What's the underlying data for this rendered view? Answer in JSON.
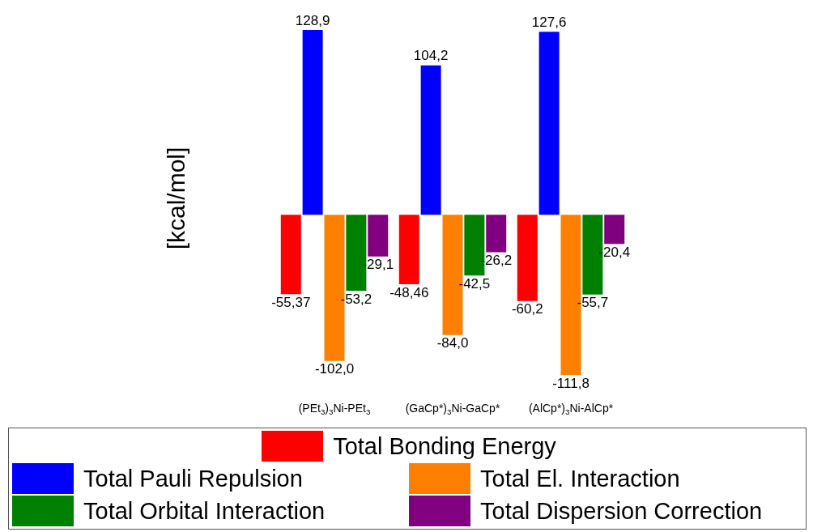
{
  "chart_data": {
    "type": "bar",
    "ylabel": "[kcal/mol]",
    "categories": [
      "(PEt$_{3}$)$_{3}$Ni-PEt$_{3}$",
      "(GaCp*)$_{3}$Ni-GaCp*",
      "(AlCp*)$_{3}$Ni-AlCp*"
    ],
    "series": [
      {
        "name": "Total Bonding Energy",
        "color": "#ff0000",
        "values": [
          -55.37,
          -48.46,
          -60.2
        ],
        "value_labels": [
          "-55,37",
          "-48,46",
          "-60,2"
        ]
      },
      {
        "name": "Total Pauli Repulsion",
        "color": "#0000ff",
        "values": [
          128.9,
          104.2,
          127.6
        ],
        "value_labels": [
          "128,9",
          "104,2",
          "127,6"
        ]
      },
      {
        "name": "Total El. Interaction",
        "color": "#ff8000",
        "values": [
          -102.0,
          -84.0,
          -111.8
        ],
        "value_labels": [
          "-102,0",
          "-84,0",
          "-111,8"
        ]
      },
      {
        "name": "Total Orbital Interaction",
        "color": "#008000",
        "values": [
          -53.2,
          -42.5,
          -55.7
        ],
        "value_labels": [
          "-53,2",
          "-42,5",
          "-55,7"
        ]
      },
      {
        "name": "Total Dispersion Correction",
        "color": "#800080",
        "values": [
          -29.1,
          -26.2,
          -20.4
        ],
        "value_labels": [
          "-29,1",
          "-26,2",
          "-20,4"
        ]
      }
    ],
    "legend": "bottom"
  }
}
